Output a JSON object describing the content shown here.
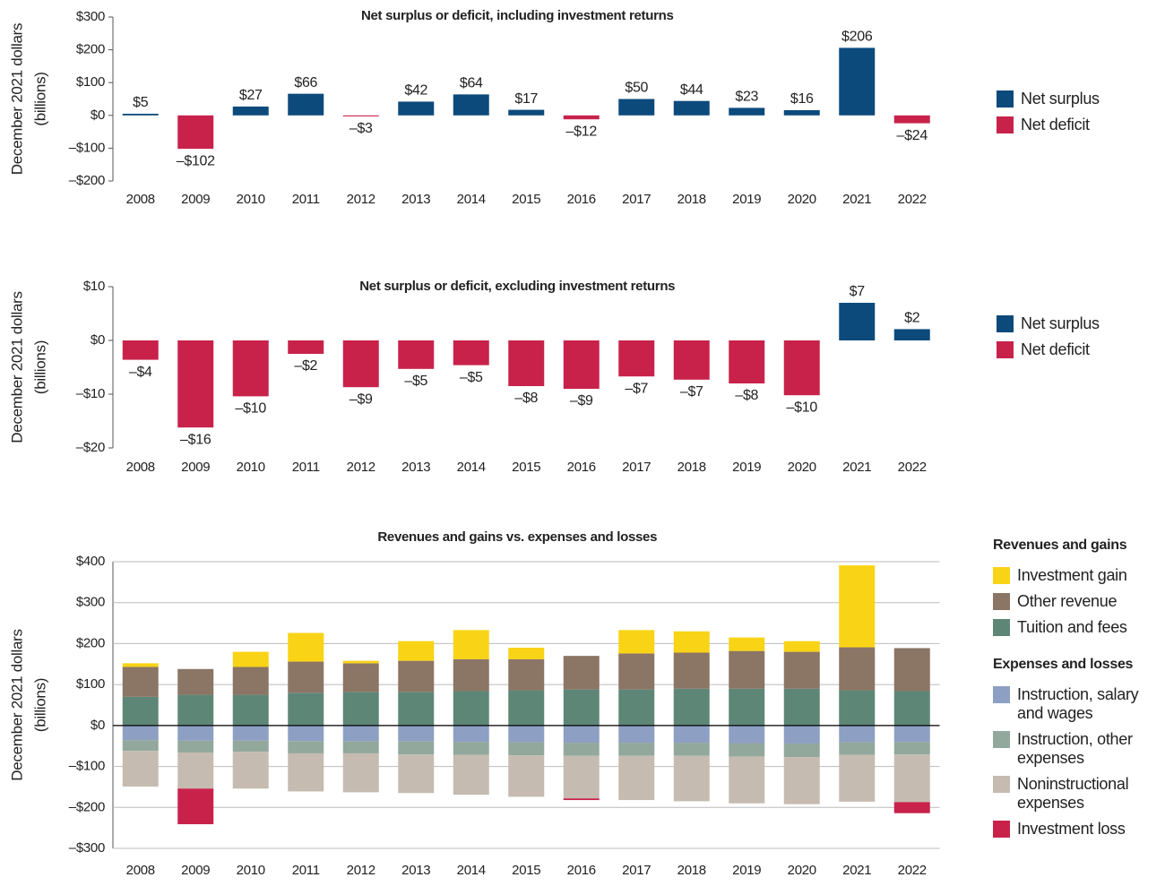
{
  "chart_data": [
    {
      "type": "bar",
      "title": "Net surplus or deficit, including investment returns",
      "ylabel": [
        "December 2021 dollars",
        "(billions)"
      ],
      "categories": [
        "2008",
        "2009",
        "2010",
        "2011",
        "2012",
        "2013",
        "2014",
        "2015",
        "2016",
        "2017",
        "2018",
        "2019",
        "2020",
        "2021",
        "2022"
      ],
      "series": [
        {
          "name": "Net surplus",
          "color": "#0d4a7c",
          "values": [
            5,
            null,
            27,
            66,
            null,
            42,
            64,
            17,
            null,
            50,
            44,
            23,
            16,
            206,
            null
          ],
          "value_labels": [
            "$5",
            null,
            "$27",
            "$66",
            null,
            "$42",
            "$64",
            "$17",
            null,
            "$50",
            "$44",
            "$23",
            "$16",
            "$206",
            null
          ]
        },
        {
          "name": "Net deficit",
          "color": "#c8224b",
          "values": [
            null,
            -102,
            null,
            null,
            -3,
            null,
            null,
            null,
            -12,
            null,
            null,
            null,
            null,
            null,
            -24
          ],
          "value_labels": [
            null,
            "–$102",
            null,
            null,
            "–$3",
            null,
            null,
            null,
            "–$12",
            null,
            null,
            null,
            null,
            null,
            "–$24"
          ]
        }
      ],
      "ylim": [
        -200,
        300
      ],
      "yticks": [
        {
          "value": -200,
          "label": "–$200"
        },
        {
          "value": -100,
          "label": "–$100"
        },
        {
          "value": 0,
          "label": "$0"
        },
        {
          "value": 100,
          "label": "$100"
        },
        {
          "value": 200,
          "label": "$200"
        },
        {
          "value": 300,
          "label": "$300"
        }
      ],
      "grid": false
    },
    {
      "type": "bar",
      "title": "Net surplus or deficit, excluding investment returns",
      "ylabel": [
        "December 2021 dollars",
        "(billions)"
      ],
      "categories": [
        "2008",
        "2009",
        "2010",
        "2011",
        "2012",
        "2013",
        "2014",
        "2015",
        "2016",
        "2017",
        "2018",
        "2019",
        "2020",
        "2021",
        "2022"
      ],
      "series": [
        {
          "name": "Net surplus",
          "color": "#0d4a7c",
          "values": [
            null,
            null,
            null,
            null,
            null,
            null,
            null,
            null,
            null,
            null,
            null,
            null,
            null,
            7,
            2.1
          ],
          "value_labels": [
            null,
            null,
            null,
            null,
            null,
            null,
            null,
            null,
            null,
            null,
            null,
            null,
            null,
            "$7",
            "$2"
          ]
        },
        {
          "name": "Net deficit",
          "color": "#c8224b",
          "values": [
            -3.6,
            -16.2,
            -10.4,
            -2.5,
            -8.7,
            -5.3,
            -4.6,
            -8.5,
            -9.0,
            -6.7,
            -7.3,
            -8.0,
            -10.2,
            null,
            null
          ],
          "value_labels": [
            "–$4",
            "–$16",
            "–$10",
            "–$2",
            "–$9",
            "–$5",
            "–$5",
            "–$8",
            "–$9",
            "–$7",
            "–$7",
            "–$8",
            "–$10",
            null,
            null
          ]
        }
      ],
      "ylim": [
        -20,
        10
      ],
      "yticks": [
        {
          "value": -20,
          "label": "–$20"
        },
        {
          "value": -10,
          "label": "–$10"
        },
        {
          "value": 0,
          "label": "$0"
        },
        {
          "value": 10,
          "label": "$10"
        }
      ],
      "grid": false
    },
    {
      "type": "stacked_bar",
      "title": "Revenues and gains vs. expenses and losses",
      "ylabel": [
        "December 2021 dollars",
        "(billions)"
      ],
      "categories": [
        "2008",
        "2009",
        "2010",
        "2011",
        "2012",
        "2013",
        "2014",
        "2015",
        "2016",
        "2017",
        "2018",
        "2019",
        "2020",
        "2021",
        "2022"
      ],
      "series_groups": [
        {
          "title": "Revenues and gains",
          "series": [
            {
              "name": "Investment gain",
              "color": "#f9d316",
              "values": [
                9,
                0,
                37,
                70,
                6,
                48,
                71,
                28,
                0,
                57,
                52,
                33,
                26,
                200,
                0
              ]
            },
            {
              "name": "Other revenue",
              "color": "#8b7565",
              "values": [
                73,
                63,
                68,
                76,
                70,
                76,
                78,
                76,
                82,
                88,
                88,
                92,
                90,
                105,
                105
              ]
            },
            {
              "name": "Tuition and fees",
              "color": "#5e8677",
              "values": [
                70,
                75,
                75,
                80,
                82,
                82,
                84,
                86,
                88,
                88,
                90,
                90,
                90,
                86,
                84
              ]
            }
          ]
        },
        {
          "title": "Expenses and losses",
          "series": [
            {
              "name": "Instruction, salary and wages",
              "color": "#8d9fc2",
              "values": [
                -36,
                -37,
                -37,
                -38,
                -39,
                -39,
                -40,
                -41,
                -42,
                -42,
                -42,
                -43,
                -44,
                -41,
                -40
              ]
            },
            {
              "name": "Instruction, other expenses",
              "color": "#93a89d",
              "values": [
                -26,
                -29,
                -27,
                -30,
                -29,
                -32,
                -32,
                -32,
                -32,
                -32,
                -32,
                -33,
                -33,
                -31,
                -31
              ]
            },
            {
              "name": "Noninstructional expenses",
              "color": "#c5bbb0",
              "values": [
                -87,
                -88,
                -90,
                -93,
                -95,
                -94,
                -97,
                -101,
                -104,
                -108,
                -111,
                -114,
                -115,
                -114,
                -116
              ]
            },
            {
              "name": "Investment loss",
              "color": "#c8224b",
              "values": [
                0,
                -87,
                0,
                0,
                0,
                0,
                0,
                0,
                -4,
                0,
                0,
                0,
                0,
                0,
                -27
              ]
            }
          ]
        }
      ],
      "ylim": [
        -300,
        400
      ],
      "yticks": [
        {
          "value": -300,
          "label": "–$300"
        },
        {
          "value": -200,
          "label": "–$200"
        },
        {
          "value": -100,
          "label": "–$100"
        },
        {
          "value": 0,
          "label": "$0"
        },
        {
          "value": 100,
          "label": "$100"
        },
        {
          "value": 200,
          "label": "$200"
        },
        {
          "value": 300,
          "label": "$300"
        },
        {
          "value": 400,
          "label": "$400"
        }
      ],
      "grid": true,
      "zero_line": true
    }
  ]
}
